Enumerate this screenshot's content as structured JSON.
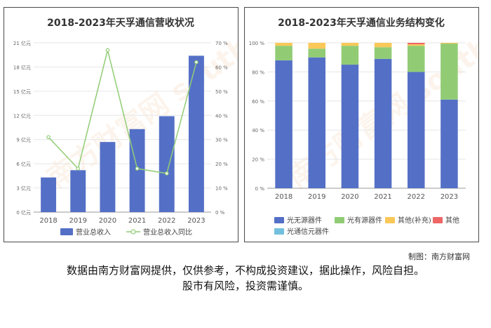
{
  "credit": "制图：南方财富网",
  "disclaimer_line1": "数据由南方财富网提供，仅供参考，不构成投资建议，据此操作，风险自担。",
  "disclaimer_line2": "股市有风险，投资需谨慎。",
  "watermark": "南方财富网 southmoney.com",
  "chart_data": [
    {
      "type": "bar",
      "title": "2018-2023年天孚通信营收状况",
      "categories": [
        "2018",
        "2019",
        "2020",
        "2021",
        "2022",
        "2023"
      ],
      "series": [
        {
          "name": "营业总收入",
          "kind": "bar",
          "axis": "left",
          "color": "#5470c6",
          "values": [
            4.3,
            5.2,
            8.7,
            10.3,
            11.9,
            19.4
          ]
        },
        {
          "name": "营业总收入同比",
          "kind": "line",
          "axis": "right",
          "color": "#91cc75",
          "values": [
            31,
            18,
            67,
            18,
            16,
            62
          ]
        }
      ],
      "y_left": {
        "min": 0,
        "max": 21,
        "ticks": [
          0,
          3,
          6,
          9,
          12,
          15,
          18,
          21
        ],
        "tick_labels": [
          "0 亿元",
          "3 亿元",
          "6 亿元",
          "9 亿元",
          "12 亿元",
          "15 亿元",
          "18 亿元",
          "21 亿元"
        ]
      },
      "y_right": {
        "min": 0,
        "max": 70,
        "ticks": [
          0,
          10,
          20,
          30,
          40,
          50,
          60,
          70
        ],
        "tick_labels": [
          "0 %",
          "10 %",
          "20 %",
          "30 %",
          "40 %",
          "50 %",
          "60 %",
          "70 %"
        ]
      },
      "legend_position": "bottom",
      "grid": true
    },
    {
      "type": "bar",
      "stacked": true,
      "title": "2018-2023年天孚通信业务结构变化",
      "categories": [
        "2018",
        "2019",
        "2020",
        "2021",
        "2022",
        "2023"
      ],
      "series": [
        {
          "name": "光无源器件",
          "color": "#5470c6",
          "values": [
            88,
            90,
            85,
            89,
            80,
            61
          ]
        },
        {
          "name": "光有源器件",
          "color": "#91cc75",
          "values": [
            10,
            6,
            13,
            8,
            18,
            38.5
          ]
        },
        {
          "name": "其他(补充)",
          "color": "#fac858",
          "values": [
            2,
            4,
            2,
            3,
            1,
            0.5
          ]
        },
        {
          "name": "其他",
          "color": "#ee6666",
          "values": [
            0,
            0,
            0,
            0,
            1,
            0
          ]
        },
        {
          "name": "光通信元器件",
          "color": "#73c0de",
          "values": [
            0,
            0,
            0,
            0,
            0,
            0
          ]
        }
      ],
      "y": {
        "min": 0,
        "max": 100,
        "ticks": [
          0,
          20,
          40,
          60,
          80,
          100
        ],
        "tick_labels": [
          "0 %",
          "20 %",
          "40 %",
          "60 %",
          "80 %",
          "100 %"
        ]
      },
      "legend_position": "bottom",
      "grid": true
    }
  ]
}
